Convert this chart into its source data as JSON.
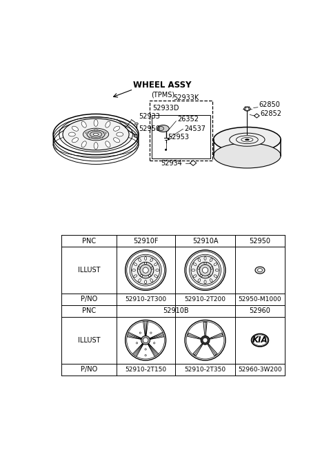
{
  "bg_color": "#ffffff",
  "line_color": "#000000",
  "text_color": "#000000",
  "wheel_assy_label": "WHEEL ASSY",
  "tpms_label": "(TPMS)",
  "parts": {
    "top_left": [
      "52933",
      "52950"
    ],
    "tpms": [
      "52933K",
      "52933D",
      "26352",
      "24537",
      "52953",
      "52934"
    ],
    "spare": [
      "62850",
      "62852"
    ]
  },
  "table_row1_pnc": [
    "PNC",
    "52910F",
    "52910A",
    "52950"
  ],
  "table_row1_pno": [
    "P/NO",
    "52910-2T300",
    "52910-2T200",
    "52950-M1000"
  ],
  "table_row2_pnc": [
    "PNC",
    "52910B",
    "52960"
  ],
  "table_row2_pno": [
    "P/NO",
    "52910-2T150",
    "52910-2T350",
    "52960-3W200"
  ],
  "font_size_label": 7.0,
  "font_size_table": 7.0,
  "font_size_heading": 8.5
}
